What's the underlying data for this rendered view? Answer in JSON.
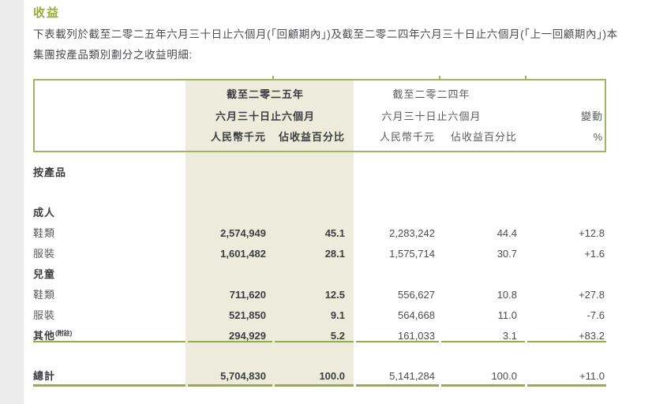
{
  "title": "收益",
  "intro": "下表載列於截至二零二五年六月三十日止六個月(「回顧期內」)及截至二零二四年六月三十日止六個月(「上一回顧期內」)本集團按產品類別劃分之收益明細:",
  "colors": {
    "green": "#94ad37",
    "border": "#a2b55e",
    "rule": "#97ae43",
    "beige": "#edecdc",
    "text": "#4b4c4f",
    "muted": "#5a5b5f",
    "strong": "#3c3d41",
    "edge": "#ececec"
  },
  "table": {
    "header": {
      "y2025_line1": "截至二零二五年",
      "y2025_line2": "六月三十日止六個月",
      "y2024_line1": "截至二零二四年",
      "y2024_line2": "六月三十日止六個月",
      "change": "變動",
      "y2025_rmb": "人民幣千元",
      "y2025_pct": "佔收益百分比",
      "y2024_rmb": "人民幣千元",
      "y2024_pct": "佔收益百分比",
      "change_unit": "%"
    },
    "rows": [
      {
        "label": "按產品"
      },
      {
        "label": "成人"
      },
      {
        "label": "鞋類",
        "v25": "2,574,949",
        "p25": "45.1",
        "v24": "2,283,242",
        "p24": "44.4",
        "chg": "+12.8"
      },
      {
        "label": "服裝",
        "v25": "1,601,482",
        "p25": "28.1",
        "v24": "1,575,714",
        "p24": "30.7",
        "chg": "+1.6"
      },
      {
        "label": "兒童"
      },
      {
        "label": "鞋類",
        "v25": "711,620",
        "p25": "12.5",
        "v24": "556,627",
        "p24": "10.8",
        "chg": "+27.8"
      },
      {
        "label": "服裝",
        "v25": "521,850",
        "p25": "9.1",
        "v24": "564,668",
        "p24": "11.0",
        "chg": "-7.6"
      },
      {
        "label": "其他",
        "note": "(附註)",
        "v25": "294,929",
        "p25": "5.2",
        "v24": "161,033",
        "p24": "3.1",
        "chg": "+83.2"
      },
      {
        "label": "總計",
        "v25": "5,704,830",
        "p25": "100.0",
        "v24": "5,141,284",
        "p24": "100.0",
        "chg": "+11.0"
      }
    ]
  }
}
